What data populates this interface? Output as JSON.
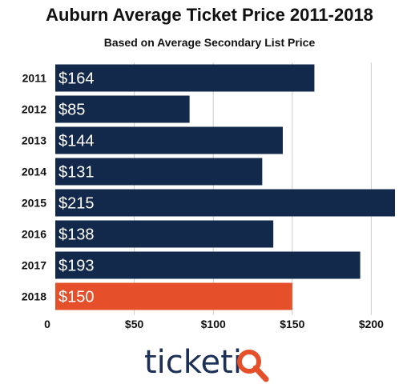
{
  "chart_data": {
    "type": "bar",
    "orientation": "horizontal",
    "title": "Auburn Average Ticket Price 2011-2018",
    "subtitle": "Based on Average Secondary List Price",
    "categories": [
      "2011",
      "2012",
      "2013",
      "2014",
      "2015",
      "2016",
      "2017",
      "2018"
    ],
    "values": [
      164,
      85,
      144,
      131,
      215,
      138,
      193,
      150
    ],
    "data_labels": [
      "$164",
      "$85",
      "$144",
      "$131",
      "$215",
      "$138",
      "$193",
      "$150"
    ],
    "x_ticks": [
      0,
      50,
      100,
      150,
      200
    ],
    "x_tick_labels": [
      "0",
      "$50",
      "$100",
      "$150",
      "$200"
    ],
    "xlim": [
      0,
      215
    ],
    "grid": true,
    "highlight_category": "2018",
    "colors": {
      "bar": "#13294b",
      "highlight": "#e5502a",
      "grid": "#cccccc",
      "label": "#ffffff",
      "text": "#111111"
    }
  },
  "brand": {
    "name": "ticketiQ",
    "text_color": "#1c2f56",
    "accent_color": "#e5502a"
  }
}
